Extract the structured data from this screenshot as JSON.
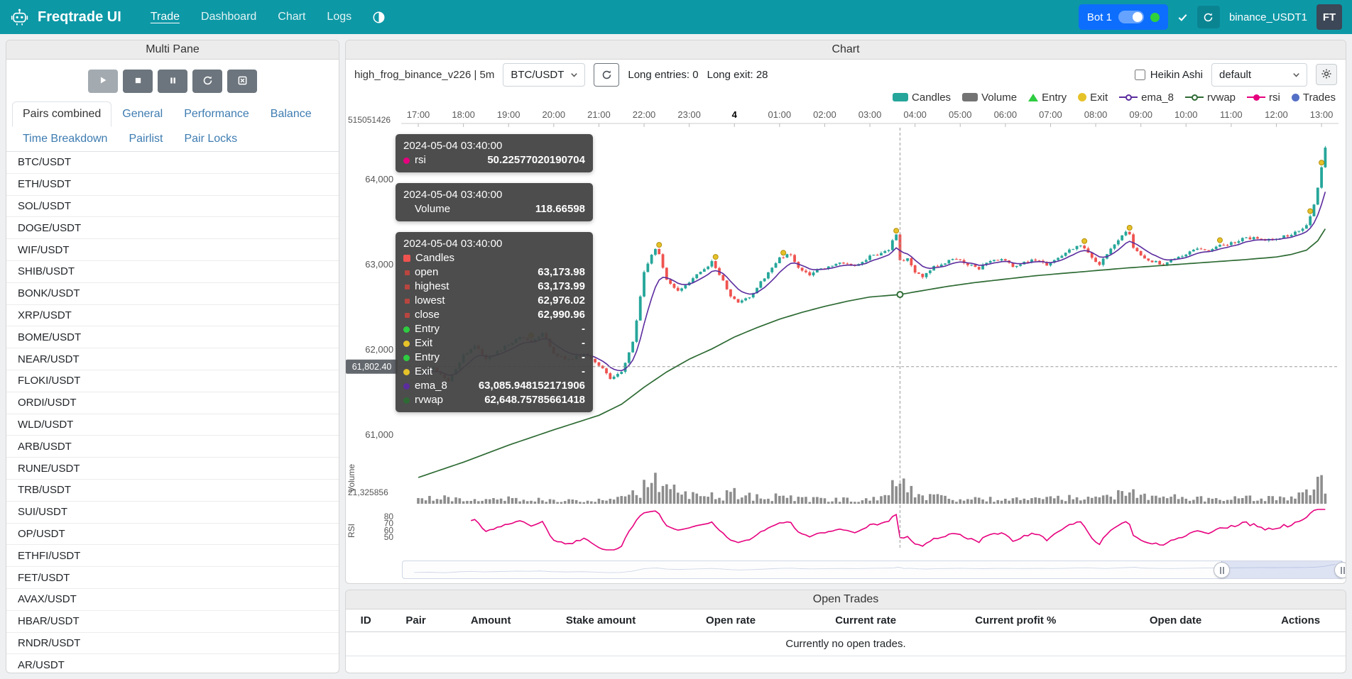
{
  "colors": {
    "navbar": "#0d98a6",
    "accent_blue": "#0d6efd",
    "online_green": "#2fd23a",
    "candle_up": "#26a69a",
    "candle_down": "#ef5350",
    "volume_bar": "#8d8d8d",
    "ema_8": "#5b2c9e",
    "rvwap": "#2e6b34",
    "rsi": "#e6007e",
    "entry": "#2ecc40",
    "exit": "#e6c229",
    "trades": "#5470c6"
  },
  "navbar": {
    "brand": "Freqtrade UI",
    "items": [
      {
        "label": "Trade",
        "active": true
      },
      {
        "label": "Dashboard",
        "active": false
      },
      {
        "label": "Chart",
        "active": false
      },
      {
        "label": "Logs",
        "active": false
      }
    ],
    "bot_label": "Bot 1",
    "bot_name": "binance_USDT1",
    "avatar": "FT"
  },
  "multi_pane": {
    "title": "Multi Pane",
    "controls": [
      {
        "name": "start",
        "icon": "play",
        "light": true
      },
      {
        "name": "stop",
        "icon": "stop",
        "light": false
      },
      {
        "name": "pause",
        "icon": "pause",
        "light": false
      },
      {
        "name": "reload-config",
        "icon": "reload",
        "light": false
      },
      {
        "name": "force-exit",
        "icon": "cancel",
        "light": false
      }
    ],
    "tabs": [
      "Pairs combined",
      "General",
      "Performance",
      "Balance",
      "Time Breakdown",
      "Pairlist",
      "Pair Locks"
    ],
    "active_tab": "Pairs combined",
    "pairs": [
      "BTC/USDT",
      "ETH/USDT",
      "SOL/USDT",
      "DOGE/USDT",
      "WIF/USDT",
      "SHIB/USDT",
      "BONK/USDT",
      "XRP/USDT",
      "BOME/USDT",
      "NEAR/USDT",
      "FLOKI/USDT",
      "ORDI/USDT",
      "WLD/USDT",
      "ARB/USDT",
      "RUNE/USDT",
      "TRB/USDT",
      "SUI/USDT",
      "OP/USDT",
      "ETHFI/USDT",
      "FET/USDT",
      "AVAX/USDT",
      "HBAR/USDT",
      "RNDR/USDT",
      "AR/USDT"
    ]
  },
  "chart_panel": {
    "title": "Chart",
    "strategy": "high_frog_binance_v226 | 5m",
    "pair_select": "BTC/USDT",
    "long_entries": "Long entries: 0",
    "long_exit": "Long exit: 28",
    "heikin_ashi_label": "Heikin Ashi",
    "plot_config": "default",
    "legend": [
      {
        "label": "Candles",
        "icon": "rect",
        "color": "#26a69a"
      },
      {
        "label": "Volume",
        "icon": "rect",
        "color": "#737373"
      },
      {
        "label": "Entry",
        "icon": "triangle",
        "color": "#2ecc40"
      },
      {
        "label": "Exit",
        "icon": "circle",
        "color": "#e6c229"
      },
      {
        "label": "ema_8",
        "icon": "line",
        "color": "#5b2c9e"
      },
      {
        "label": "rvwap",
        "icon": "line",
        "color": "#2e6b34"
      },
      {
        "label": "rsi",
        "icon": "line-dot",
        "color": "#e6007e"
      },
      {
        "label": "Trades",
        "icon": "dot",
        "color": "#5470c6"
      }
    ],
    "tooltip_sections": [
      {
        "date": "2024-05-04 03:40:00",
        "rows": [
          {
            "marker": "circle",
            "color": "#e6007e",
            "label": "rsi",
            "value": "50.22577020190704"
          }
        ]
      },
      {
        "date": "2024-05-04 03:40:00",
        "rows": [
          {
            "marker": "none",
            "color": "",
            "label": "Volume",
            "value": "118.66598"
          }
        ]
      },
      {
        "date": "2024-05-04 03:40:00",
        "rows": [
          {
            "marker": "square",
            "color": "#ef5350",
            "label": "Candles",
            "value": ""
          },
          {
            "marker": "square-sm",
            "color": "#b8453f",
            "label": "open",
            "value": "63,173.98"
          },
          {
            "marker": "square-sm",
            "color": "#b8453f",
            "label": "highest",
            "value": "63,173.99"
          },
          {
            "marker": "square-sm",
            "color": "#b8453f",
            "label": "lowest",
            "value": "62,976.02"
          },
          {
            "marker": "square-sm",
            "color": "#b8453f",
            "label": "close",
            "value": "62,990.96"
          },
          {
            "marker": "circle",
            "color": "#2ecc40",
            "label": "Entry",
            "value": "-"
          },
          {
            "marker": "circle",
            "color": "#e6c229",
            "label": "Exit",
            "value": "-"
          },
          {
            "marker": "circle",
            "color": "#2ecc40",
            "label": "Entry",
            "value": "-"
          },
          {
            "marker": "circle",
            "color": "#e6c229",
            "label": "Exit",
            "value": "-"
          },
          {
            "marker": "circle",
            "color": "#5b2c9e",
            "label": "ema_8",
            "value": "63,085.948152171906"
          },
          {
            "marker": "circle",
            "color": "#2e6b34",
            "label": "rvwap",
            "value": "62,648.75785661418"
          }
        ]
      }
    ]
  },
  "open_trades": {
    "title": "Open Trades",
    "columns": [
      "ID",
      "Pair",
      "Amount",
      "Stake amount",
      "Open rate",
      "Current rate",
      "Current profit %",
      "Open date",
      "Actions"
    ],
    "empty_text": "Currently no open trades."
  },
  "chart_data": {
    "type": "candlestick",
    "pair": "BTC/USDT",
    "timeframe": "5m",
    "title": "high_frog_binance_v226 | 5m",
    "legend_position": "top-right",
    "grid": false,
    "x_ticks": [
      "17:00",
      "18:00",
      "19:00",
      "20:00",
      "21:00",
      "22:00",
      "23:00",
      "4",
      "01:00",
      "02:00",
      "03:00",
      "04:00",
      "05:00",
      "06:00",
      "07:00",
      "08:00",
      "09:00",
      "10:00",
      "11:00",
      "12:00",
      "13:00"
    ],
    "price_ticks": [
      {
        "value": 61000,
        "label": "61,000"
      },
      {
        "value": 62000,
        "label": "62,000"
      },
      {
        "value": 63000,
        "label": "63,000"
      },
      {
        "value": 64000,
        "label": "64,000"
      }
    ],
    "rsi_ticks": [
      80,
      70,
      60,
      50
    ],
    "axis_extra": {
      "top_left": "515051426",
      "volume_left": "21,325856",
      "volume_title": "Volume",
      "rsi_title": "RSI"
    },
    "crosshair": {
      "minute": 640,
      "time": "2024-05-04 03:40:00",
      "price_value": 61802.4,
      "price_label": "61,802.40"
    },
    "hovered_candle": {
      "time": "2024-05-04 03:40:00",
      "open": 63173.98,
      "high": 63173.99,
      "low": 62976.02,
      "close": 62990.96,
      "volume": 118.66598,
      "rsi": 50.22577020190704,
      "ema_8": 63085.948152171906,
      "rvwap": 62648.75785661418
    },
    "price_range_approx": [
      60500,
      64650
    ],
    "price_anchors": [
      [
        0,
        61720
      ],
      [
        20,
        61790
      ],
      [
        40,
        61640
      ],
      [
        60,
        61930
      ],
      [
        75,
        62060
      ],
      [
        90,
        61890
      ],
      [
        105,
        61970
      ],
      [
        120,
        62070
      ],
      [
        135,
        62150
      ],
      [
        150,
        62090
      ],
      [
        165,
        62200
      ],
      [
        180,
        61950
      ],
      [
        200,
        61880
      ],
      [
        220,
        61960
      ],
      [
        240,
        61820
      ],
      [
        255,
        61660
      ],
      [
        270,
        61730
      ],
      [
        285,
        62080
      ],
      [
        300,
        62900
      ],
      [
        310,
        63130
      ],
      [
        318,
        63190
      ],
      [
        330,
        62830
      ],
      [
        345,
        62700
      ],
      [
        360,
        62800
      ],
      [
        375,
        62920
      ],
      [
        390,
        63030
      ],
      [
        400,
        62890
      ],
      [
        415,
        62630
      ],
      [
        425,
        62550
      ],
      [
        440,
        62620
      ],
      [
        455,
        62790
      ],
      [
        470,
        62960
      ],
      [
        480,
        63070
      ],
      [
        495,
        63130
      ],
      [
        505,
        62960
      ],
      [
        520,
        62890
      ],
      [
        540,
        62970
      ],
      [
        560,
        63020
      ],
      [
        580,
        62970
      ],
      [
        600,
        63090
      ],
      [
        615,
        63130
      ],
      [
        628,
        63190
      ],
      [
        633,
        63460
      ],
      [
        638,
        63180
      ],
      [
        641,
        62991
      ],
      [
        648,
        63090
      ],
      [
        655,
        62990
      ],
      [
        660,
        62910
      ],
      [
        670,
        62850
      ],
      [
        685,
        62970
      ],
      [
        700,
        63020
      ],
      [
        715,
        63080
      ],
      [
        730,
        63000
      ],
      [
        745,
        62960
      ],
      [
        760,
        63040
      ],
      [
        775,
        63070
      ],
      [
        790,
        62990
      ],
      [
        805,
        63020
      ],
      [
        820,
        63060
      ],
      [
        835,
        62990
      ],
      [
        850,
        63070
      ],
      [
        865,
        63170
      ],
      [
        880,
        63240
      ],
      [
        895,
        63090
      ],
      [
        905,
        62990
      ],
      [
        915,
        63130
      ],
      [
        930,
        63270
      ],
      [
        943,
        63430
      ],
      [
        950,
        63190
      ],
      [
        960,
        63110
      ],
      [
        975,
        63040
      ],
      [
        990,
        63000
      ],
      [
        1005,
        63070
      ],
      [
        1020,
        63120
      ],
      [
        1035,
        63180
      ],
      [
        1050,
        63160
      ],
      [
        1065,
        63230
      ],
      [
        1080,
        63250
      ],
      [
        1095,
        63300
      ],
      [
        1110,
        63320
      ],
      [
        1125,
        63280
      ],
      [
        1140,
        63310
      ],
      [
        1155,
        63340
      ],
      [
        1170,
        63390
      ],
      [
        1182,
        63490
      ],
      [
        1190,
        63710
      ],
      [
        1196,
        63960
      ],
      [
        1200,
        64160
      ],
      [
        1205,
        64390
      ]
    ],
    "rvwap_anchors": [
      [
        0,
        60500
      ],
      [
        60,
        60680
      ],
      [
        120,
        60880
      ],
      [
        180,
        61060
      ],
      [
        240,
        61230
      ],
      [
        270,
        61360
      ],
      [
        300,
        61560
      ],
      [
        330,
        61740
      ],
      [
        360,
        61890
      ],
      [
        390,
        62010
      ],
      [
        420,
        62150
      ],
      [
        450,
        62260
      ],
      [
        480,
        62360
      ],
      [
        510,
        62440
      ],
      [
        540,
        62510
      ],
      [
        570,
        62570
      ],
      [
        600,
        62620
      ],
      [
        640,
        62649
      ],
      [
        660,
        62680
      ],
      [
        700,
        62740
      ],
      [
        740,
        62790
      ],
      [
        780,
        62830
      ],
      [
        820,
        62870
      ],
      [
        860,
        62900
      ],
      [
        900,
        62930
      ],
      [
        940,
        62960
      ],
      [
        980,
        62985
      ],
      [
        1020,
        63010
      ],
      [
        1060,
        63035
      ],
      [
        1100,
        63060
      ],
      [
        1140,
        63090
      ],
      [
        1160,
        63120
      ],
      [
        1180,
        63170
      ],
      [
        1195,
        63280
      ],
      [
        1205,
        63420
      ]
    ],
    "volume_anchors": [
      [
        0,
        40
      ],
      [
        30,
        55
      ],
      [
        60,
        45
      ],
      [
        90,
        30
      ],
      [
        120,
        40
      ],
      [
        150,
        35
      ],
      [
        180,
        30
      ],
      [
        210,
        25
      ],
      [
        240,
        35
      ],
      [
        270,
        45
      ],
      [
        295,
        90
      ],
      [
        305,
        170
      ],
      [
        315,
        205
      ],
      [
        325,
        160
      ],
      [
        335,
        120
      ],
      [
        350,
        80
      ],
      [
        365,
        60
      ],
      [
        385,
        70
      ],
      [
        400,
        55
      ],
      [
        420,
        85
      ],
      [
        435,
        70
      ],
      [
        455,
        45
      ],
      [
        480,
        60
      ],
      [
        500,
        45
      ],
      [
        520,
        35
      ],
      [
        540,
        40
      ],
      [
        560,
        35
      ],
      [
        580,
        30
      ],
      [
        600,
        45
      ],
      [
        620,
        60
      ],
      [
        633,
        150
      ],
      [
        641,
        190
      ],
      [
        650,
        120
      ],
      [
        660,
        90
      ],
      [
        675,
        60
      ],
      [
        700,
        45
      ],
      [
        720,
        40
      ],
      [
        750,
        35
      ],
      [
        780,
        40
      ],
      [
        810,
        35
      ],
      [
        840,
        40
      ],
      [
        865,
        55
      ],
      [
        880,
        60
      ],
      [
        900,
        45
      ],
      [
        915,
        50
      ],
      [
        930,
        70
      ],
      [
        943,
        95
      ],
      [
        955,
        60
      ],
      [
        975,
        45
      ],
      [
        995,
        60
      ],
      [
        1010,
        45
      ],
      [
        1030,
        40
      ],
      [
        1050,
        45
      ],
      [
        1070,
        40
      ],
      [
        1090,
        45
      ],
      [
        1110,
        50
      ],
      [
        1130,
        45
      ],
      [
        1150,
        50
      ],
      [
        1170,
        60
      ],
      [
        1182,
        90
      ],
      [
        1190,
        150
      ],
      [
        1196,
        185
      ],
      [
        1200,
        215
      ],
      [
        1205,
        195
      ]
    ],
    "exit_marker_minutes": [
      152,
      320,
      395,
      487,
      633,
      883,
      944,
      1066,
      1186,
      1199
    ]
  }
}
